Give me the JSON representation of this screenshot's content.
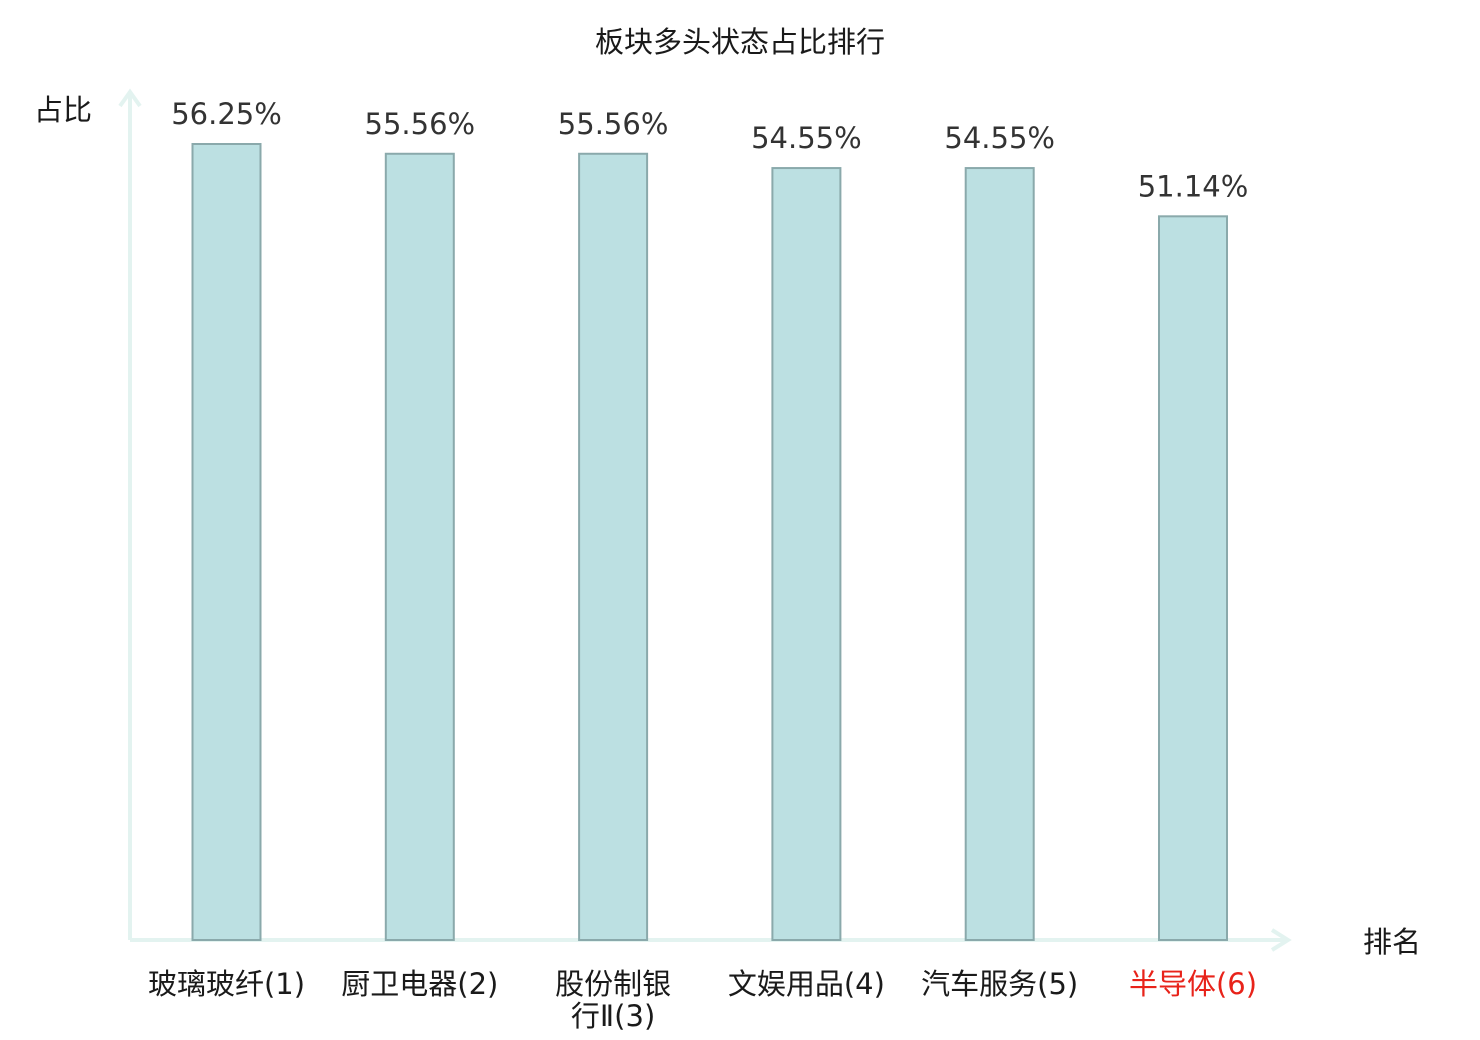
{
  "chart_data": {
    "type": "bar",
    "title": "板块多头状态占比排行",
    "ylabel": "占比",
    "xlabel": "排名",
    "categories": [
      [
        "玻璃玻纤(1)"
      ],
      [
        "厨卫电器(2)"
      ],
      [
        "股份制银",
        "行Ⅱ(3)"
      ],
      [
        "文娱用品(4)"
      ],
      [
        "汽车服务(5)"
      ],
      [
        "半导体(6)"
      ]
    ],
    "values": [
      56.25,
      55.56,
      55.56,
      54.55,
      54.55,
      51.14
    ],
    "value_labels": [
      "56.25%",
      "55.56%",
      "55.56%",
      "54.55%",
      "54.55%",
      "51.14%"
    ],
    "highlight_index": 5,
    "ylim": [
      0,
      56.25
    ],
    "grid": false,
    "legend": "none",
    "colors": {
      "bar_fill": "#bce0e2",
      "bar_stroke": "#8aa9ab",
      "axis": "#e3f3f0",
      "highlight_text": "#e8231a",
      "text": "#1a1a1a",
      "value_text": "#333333"
    }
  }
}
